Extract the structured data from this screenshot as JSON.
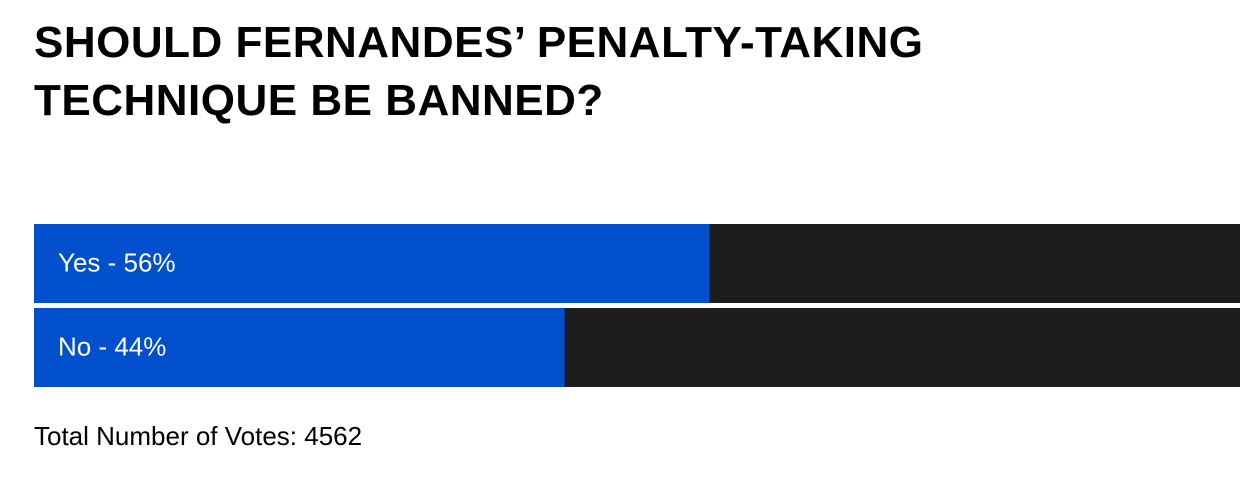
{
  "chart_data": {
    "type": "bar",
    "orientation": "horizontal",
    "title": "SHOULD FERNANDES’ PENALTY-TAKING TECHNIQUE BE BANNED?",
    "values": [
      56,
      44
    ],
    "value_labels": [
      "Yes - 56%",
      "No - 44%"
    ],
    "xlim": [
      0,
      100
    ],
    "color": "#004fcc",
    "track_color": "#1c1c1c",
    "footer": "Total Number of Votes: 4562"
  }
}
